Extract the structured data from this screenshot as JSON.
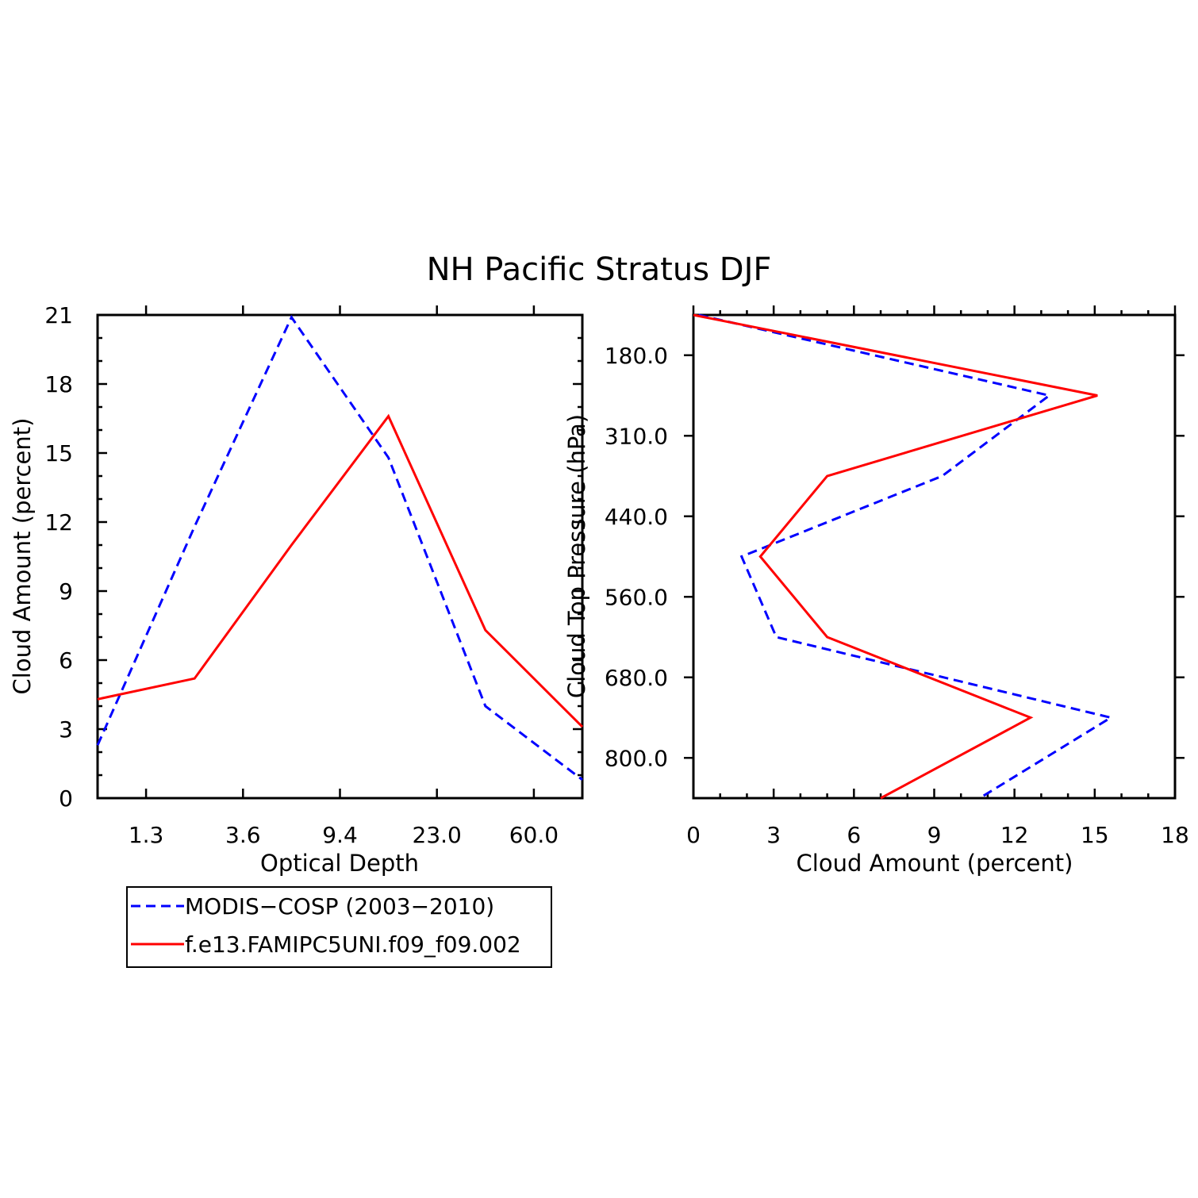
{
  "title": "NH Pacific Stratus DJF",
  "colors": {
    "obs": "#0000ff",
    "model": "#ff0000",
    "axis": "#000000"
  },
  "legend": {
    "entries": [
      {
        "label": "MODIS−COSP (2003−2010)",
        "series": "obs",
        "style": "dashed"
      },
      {
        "label": "f.e13.FAMIPC5UNI.f09_f09.002",
        "series": "model",
        "style": "solid"
      }
    ]
  },
  "chart_data": [
    {
      "type": "line",
      "panel": "left",
      "xlabel": "Optical Depth",
      "ylabel": "Cloud Amount (percent)",
      "x_tick_labels": [
        "1.3",
        "3.6",
        "9.4",
        "23.0",
        "60.0"
      ],
      "x_bin_index": [
        0,
        1,
        2,
        3,
        4,
        5
      ],
      "xlim": [
        0,
        5
      ],
      "ylim": [
        0,
        21
      ],
      "y_ticks": [
        0,
        3,
        6,
        9,
        12,
        15,
        18,
        21
      ],
      "y_tick_labels": [
        "0",
        "3",
        "6",
        "9",
        "12",
        "15",
        "18",
        "21"
      ],
      "series": [
        {
          "name": "MODIS−COSP (2003−2010)",
          "key": "obs",
          "values": [
            2.3,
            11.8,
            20.9,
            14.8,
            4.0,
            0.8
          ]
        },
        {
          "name": "f.e13.FAMIPC5UNI.f09_f09.002",
          "key": "model",
          "values": [
            4.3,
            5.2,
            11.0,
            16.6,
            7.3,
            3.1
          ]
        }
      ]
    },
    {
      "type": "line",
      "panel": "right",
      "xlabel": "Cloud Amount (percent)",
      "ylabel": "Cloud Top Pressure (hPa)",
      "xlim": [
        0,
        18
      ],
      "x_ticks": [
        0,
        3,
        6,
        9,
        12,
        15,
        18
      ],
      "x_tick_labels": [
        "0",
        "3",
        "6",
        "9",
        "12",
        "15",
        "18"
      ],
      "y_tick_labels": [
        "180.0",
        "310.0",
        "440.0",
        "560.0",
        "680.0",
        "800.0"
      ],
      "ylim_index": [
        0,
        6
      ],
      "y_bin_index": [
        0,
        1,
        2,
        3,
        4,
        5,
        6
      ],
      "series": [
        {
          "name": "MODIS−COSP (2003−2010)",
          "key": "obs",
          "values": [
            0.2,
            13.3,
            9.3,
            1.8,
            3.1,
            15.6,
            10.7
          ]
        },
        {
          "name": "f.e13.FAMIPC5UNI.f09_f09.002",
          "key": "model",
          "values": [
            0.0,
            15.1,
            5.0,
            2.5,
            5.0,
            12.6,
            7.0
          ]
        }
      ]
    }
  ]
}
